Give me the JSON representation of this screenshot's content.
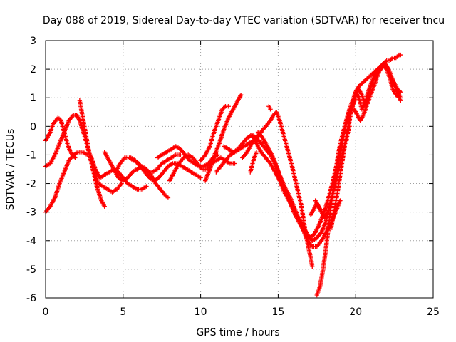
{
  "chart_data": {
    "type": "scatter",
    "title": "Day 088 of 2019, Sidereal Day-to-day VTEC variation (SDTVAR) for receiver tncu",
    "xlabel": "GPS time / hours",
    "ylabel": "SDTVAR / TECUs",
    "xlim": [
      0,
      25
    ],
    "ylim": [
      -6,
      3
    ],
    "xticks": [
      "0",
      "5",
      "10",
      "15",
      "20",
      "25"
    ],
    "yticks": [
      "-6",
      "-5",
      "-4",
      "-3",
      "-2",
      "-1",
      "0",
      "1",
      "2",
      "3"
    ],
    "grid": true,
    "marker": "plus",
    "color": "#ff0000",
    "tracks": [
      [
        [
          0.0,
          -3.0
        ],
        [
          0.3,
          -2.8
        ],
        [
          0.6,
          -2.5
        ],
        [
          0.9,
          -2.0
        ],
        [
          1.2,
          -1.6
        ],
        [
          1.5,
          -1.2
        ],
        [
          1.8,
          -1.0
        ],
        [
          2.1,
          -0.9
        ],
        [
          2.4,
          -0.9
        ],
        [
          2.7,
          -1.0
        ]
      ],
      [
        [
          0.0,
          -1.4
        ],
        [
          0.3,
          -1.3
        ],
        [
          0.6,
          -1.0
        ],
        [
          0.9,
          -0.6
        ],
        [
          1.2,
          -0.2
        ],
        [
          1.5,
          0.2
        ],
        [
          1.8,
          0.4
        ],
        [
          2.0,
          0.4
        ],
        [
          2.2,
          0.2
        ],
        [
          2.5,
          -0.3
        ],
        [
          2.8,
          -0.9
        ],
        [
          3.1,
          -1.6
        ],
        [
          3.3,
          -2.1
        ],
        [
          3.6,
          -2.6
        ],
        [
          3.8,
          -2.8
        ]
      ],
      [
        [
          0.0,
          -0.5
        ],
        [
          0.3,
          -0.2
        ],
        [
          0.5,
          0.1
        ],
        [
          0.8,
          0.3
        ],
        [
          1.0,
          0.2
        ],
        [
          1.2,
          -0.2
        ],
        [
          1.4,
          -0.6
        ],
        [
          1.6,
          -0.9
        ],
        [
          1.9,
          -1.1
        ]
      ],
      [
        [
          2.2,
          0.9
        ],
        [
          2.5,
          0.0
        ],
        [
          2.8,
          -0.9
        ],
        [
          3.1,
          -1.6
        ],
        [
          3.4,
          -2.0
        ],
        [
          3.7,
          -2.1
        ],
        [
          4.0,
          -2.2
        ],
        [
          4.3,
          -2.3
        ],
        [
          4.6,
          -2.2
        ],
        [
          4.9,
          -2.0
        ]
      ],
      [
        [
          2.9,
          -1.0
        ],
        [
          3.2,
          -1.5
        ],
        [
          3.5,
          -1.8
        ],
        [
          3.8,
          -1.7
        ],
        [
          4.1,
          -1.6
        ],
        [
          4.4,
          -1.5
        ],
        [
          4.7,
          -1.6
        ],
        [
          5.0,
          -1.8
        ],
        [
          5.3,
          -2.0
        ],
        [
          5.6,
          -2.1
        ],
        [
          5.9,
          -2.2
        ],
        [
          6.2,
          -2.2
        ],
        [
          6.5,
          -2.1
        ]
      ],
      [
        [
          3.8,
          -0.9
        ],
        [
          4.1,
          -1.2
        ],
        [
          4.4,
          -1.5
        ],
        [
          4.7,
          -1.8
        ],
        [
          5.0,
          -1.9
        ],
        [
          5.3,
          -1.8
        ],
        [
          5.6,
          -1.6
        ],
        [
          5.9,
          -1.5
        ],
        [
          6.2,
          -1.4
        ],
        [
          6.5,
          -1.5
        ],
        [
          6.8,
          -1.7
        ],
        [
          7.1,
          -2.0
        ],
        [
          7.4,
          -2.2
        ],
        [
          7.7,
          -2.4
        ],
        [
          7.9,
          -2.5
        ]
      ],
      [
        [
          4.5,
          -1.6
        ],
        [
          4.8,
          -1.3
        ],
        [
          5.1,
          -1.1
        ],
        [
          5.4,
          -1.1
        ],
        [
          5.7,
          -1.2
        ],
        [
          6.0,
          -1.3
        ],
        [
          6.3,
          -1.5
        ],
        [
          6.6,
          -1.6
        ],
        [
          6.9,
          -1.6
        ],
        [
          7.2,
          -1.5
        ],
        [
          7.5,
          -1.3
        ],
        [
          7.8,
          -1.2
        ],
        [
          8.1,
          -1.1
        ],
        [
          8.4,
          -1.0
        ],
        [
          8.7,
          -1.0
        ]
      ],
      [
        [
          5.5,
          -1.1
        ],
        [
          5.8,
          -1.2
        ],
        [
          6.1,
          -1.4
        ],
        [
          6.4,
          -1.6
        ],
        [
          6.7,
          -1.8
        ],
        [
          7.0,
          -1.9
        ],
        [
          7.3,
          -1.8
        ],
        [
          7.6,
          -1.6
        ],
        [
          7.9,
          -1.4
        ],
        [
          8.2,
          -1.3
        ],
        [
          8.5,
          -1.3
        ],
        [
          8.8,
          -1.4
        ],
        [
          9.1,
          -1.5
        ],
        [
          9.4,
          -1.6
        ],
        [
          9.7,
          -1.7
        ],
        [
          10.0,
          -1.8
        ]
      ],
      [
        [
          7.2,
          -1.1
        ],
        [
          7.5,
          -1.0
        ],
        [
          7.8,
          -0.9
        ],
        [
          8.1,
          -0.8
        ],
        [
          8.4,
          -0.7
        ],
        [
          8.7,
          -0.8
        ],
        [
          9.0,
          -1.0
        ],
        [
          9.3,
          -1.2
        ],
        [
          9.6,
          -1.3
        ],
        [
          9.9,
          -1.4
        ],
        [
          10.2,
          -1.4
        ],
        [
          10.5,
          -1.3
        ],
        [
          10.8,
          -1.1
        ],
        [
          11.1,
          -1.0
        ]
      ],
      [
        [
          8.0,
          -1.9
        ],
        [
          8.3,
          -1.6
        ],
        [
          8.6,
          -1.3
        ],
        [
          8.9,
          -1.1
        ],
        [
          9.2,
          -1.0
        ],
        [
          9.5,
          -1.1
        ],
        [
          9.8,
          -1.3
        ],
        [
          10.1,
          -1.5
        ],
        [
          10.4,
          -1.5
        ],
        [
          10.7,
          -1.3
        ],
        [
          11.0,
          -1.2
        ],
        [
          11.3,
          -1.1
        ],
        [
          11.6,
          -1.2
        ],
        [
          11.9,
          -1.3
        ],
        [
          12.2,
          -1.3
        ]
      ],
      [
        [
          10.0,
          -1.2
        ],
        [
          10.3,
          -1.0
        ],
        [
          10.6,
          -0.7
        ],
        [
          10.8,
          -0.3
        ],
        [
          11.0,
          0.0
        ],
        [
          11.2,
          0.3
        ],
        [
          11.4,
          0.6
        ],
        [
          11.6,
          0.7
        ],
        [
          11.8,
          0.7
        ]
      ],
      [
        [
          10.3,
          -1.9
        ],
        [
          10.6,
          -1.5
        ],
        [
          10.9,
          -1.0
        ],
        [
          11.2,
          -0.6
        ],
        [
          11.5,
          -0.1
        ],
        [
          11.8,
          0.3
        ],
        [
          12.1,
          0.6
        ],
        [
          12.4,
          0.9
        ],
        [
          12.6,
          1.1
        ]
      ],
      [
        [
          11.0,
          -1.6
        ],
        [
          11.3,
          -1.4
        ],
        [
          11.6,
          -1.2
        ],
        [
          11.9,
          -1.0
        ],
        [
          12.2,
          -0.9
        ],
        [
          12.5,
          -0.8
        ],
        [
          12.8,
          -0.7
        ],
        [
          13.1,
          -0.6
        ],
        [
          13.4,
          -0.5
        ],
        [
          13.7,
          -0.5
        ],
        [
          14.0,
          -0.6
        ]
      ],
      [
        [
          11.5,
          -0.7
        ],
        [
          11.8,
          -0.8
        ],
        [
          12.1,
          -0.9
        ],
        [
          12.4,
          -0.8
        ],
        [
          12.7,
          -0.6
        ],
        [
          13.0,
          -0.4
        ],
        [
          13.3,
          -0.3
        ],
        [
          13.6,
          -0.4
        ],
        [
          13.9,
          -0.6
        ],
        [
          14.2,
          -0.8
        ],
        [
          14.5,
          -1.0
        ],
        [
          14.8,
          -1.3
        ],
        [
          15.1,
          -1.7
        ],
        [
          15.4,
          -2.1
        ],
        [
          15.7,
          -2.4
        ],
        [
          16.0,
          -2.8
        ],
        [
          16.3,
          -3.2
        ],
        [
          16.6,
          -3.6
        ],
        [
          16.9,
          -4.0
        ],
        [
          17.2,
          -4.2
        ],
        [
          17.5,
          -4.2
        ],
        [
          17.8,
          -4.0
        ],
        [
          18.1,
          -3.7
        ],
        [
          18.4,
          -3.4
        ],
        [
          18.7,
          -3.0
        ],
        [
          19.0,
          -2.6
        ]
      ],
      [
        [
          12.7,
          -1.1
        ],
        [
          13.0,
          -0.9
        ],
        [
          13.3,
          -0.6
        ],
        [
          13.6,
          -0.4
        ],
        [
          13.9,
          -0.2
        ],
        [
          14.2,
          0.0
        ],
        [
          14.5,
          0.2
        ],
        [
          14.7,
          0.4
        ],
        [
          14.9,
          0.5
        ],
        [
          15.1,
          0.2
        ],
        [
          15.3,
          -0.2
        ],
        [
          15.6,
          -0.8
        ],
        [
          15.9,
          -1.4
        ],
        [
          16.2,
          -2.1
        ],
        [
          16.5,
          -2.8
        ],
        [
          16.7,
          -3.5
        ],
        [
          16.9,
          -4.1
        ],
        [
          17.1,
          -4.6
        ],
        [
          17.2,
          -4.9
        ]
      ],
      [
        [
          13.3,
          -0.3
        ],
        [
          13.6,
          -0.6
        ],
        [
          13.9,
          -0.9
        ],
        [
          14.2,
          -1.1
        ],
        [
          14.5,
          -1.3
        ],
        [
          14.8,
          -1.6
        ],
        [
          15.1,
          -1.9
        ],
        [
          15.4,
          -2.3
        ],
        [
          15.7,
          -2.6
        ],
        [
          16.0,
          -2.9
        ],
        [
          16.3,
          -3.2
        ],
        [
          16.6,
          -3.5
        ],
        [
          16.9,
          -3.8
        ],
        [
          17.2,
          -4.0
        ],
        [
          17.5,
          -3.9
        ],
        [
          17.8,
          -3.7
        ],
        [
          18.1,
          -3.3
        ],
        [
          18.4,
          -2.7
        ],
        [
          18.7,
          -2.0
        ],
        [
          19.0,
          -1.3
        ],
        [
          19.3,
          -0.6
        ],
        [
          19.6,
          0.0
        ]
      ],
      [
        [
          13.7,
          -0.2
        ],
        [
          14.0,
          -0.4
        ],
        [
          14.3,
          -0.7
        ],
        [
          14.6,
          -1.0
        ],
        [
          14.9,
          -1.4
        ],
        [
          15.2,
          -1.9
        ],
        [
          15.5,
          -2.3
        ],
        [
          15.8,
          -2.7
        ],
        [
          16.1,
          -3.1
        ],
        [
          16.4,
          -3.4
        ],
        [
          16.7,
          -3.7
        ],
        [
          17.0,
          -3.9
        ],
        [
          17.3,
          -3.8
        ],
        [
          17.6,
          -3.5
        ],
        [
          17.9,
          -3.1
        ],
        [
          18.2,
          -2.6
        ],
        [
          18.5,
          -2.0
        ],
        [
          18.8,
          -1.3
        ],
        [
          19.1,
          -0.6
        ],
        [
          19.4,
          0.1
        ],
        [
          19.7,
          0.6
        ],
        [
          20.0,
          1.0
        ]
      ],
      [
        [
          17.4,
          -2.6
        ],
        [
          17.6,
          -2.8
        ],
        [
          17.8,
          -3.0
        ],
        [
          18.0,
          -3.2
        ],
        [
          18.2,
          -3.0
        ],
        [
          18.4,
          -2.6
        ],
        [
          18.6,
          -2.2
        ],
        [
          18.8,
          -1.6
        ],
        [
          19.0,
          -1.0
        ],
        [
          19.2,
          -0.4
        ],
        [
          19.4,
          0.2
        ],
        [
          19.6,
          0.6
        ],
        [
          19.8,
          0.9
        ],
        [
          20.0,
          1.2
        ],
        [
          20.2,
          1.4
        ],
        [
          20.4,
          1.5
        ],
        [
          20.6,
          1.6
        ],
        [
          20.8,
          1.7
        ],
        [
          21.0,
          1.8
        ],
        [
          21.2,
          1.9
        ],
        [
          21.4,
          2.0
        ],
        [
          21.6,
          2.1
        ],
        [
          21.8,
          2.2
        ],
        [
          22.0,
          2.3
        ],
        [
          22.2,
          2.3
        ],
        [
          22.4,
          2.4
        ],
        [
          22.6,
          2.4
        ],
        [
          22.8,
          2.5
        ],
        [
          22.9,
          2.5
        ]
      ],
      [
        [
          17.5,
          -5.9
        ],
        [
          17.7,
          -5.6
        ],
        [
          17.9,
          -5.0
        ],
        [
          18.1,
          -4.2
        ],
        [
          18.3,
          -3.3
        ],
        [
          18.5,
          -2.4
        ],
        [
          18.7,
          -1.6
        ],
        [
          18.9,
          -0.9
        ],
        [
          19.1,
          -0.4
        ],
        [
          19.3,
          0.0
        ],
        [
          19.5,
          0.4
        ],
        [
          19.7,
          0.6
        ]
      ],
      [
        [
          18.4,
          -3.6
        ],
        [
          18.6,
          -3.0
        ],
        [
          18.8,
          -2.4
        ],
        [
          19.0,
          -1.7
        ],
        [
          19.2,
          -1.0
        ],
        [
          19.4,
          -0.3
        ],
        [
          19.6,
          0.3
        ],
        [
          19.8,
          0.7
        ],
        [
          20.0,
          1.1
        ],
        [
          20.2,
          1.3
        ],
        [
          20.4,
          1.1
        ],
        [
          20.6,
          0.8
        ],
        [
          20.8,
          1.0
        ],
        [
          21.0,
          1.4
        ],
        [
          21.2,
          1.7
        ],
        [
          21.4,
          1.9
        ],
        [
          21.6,
          2.0
        ],
        [
          21.8,
          2.1
        ],
        [
          22.0,
          2.0
        ],
        [
          22.2,
          1.7
        ],
        [
          22.4,
          1.3
        ],
        [
          22.6,
          1.1
        ],
        [
          22.8,
          1.0
        ],
        [
          22.9,
          0.9
        ]
      ],
      [
        [
          19.4,
          -0.5
        ],
        [
          19.6,
          0.2
        ],
        [
          19.8,
          0.8
        ],
        [
          20.0,
          1.2
        ],
        [
          20.2,
          1.0
        ],
        [
          20.4,
          0.6
        ],
        [
          20.6,
          0.8
        ],
        [
          20.8,
          1.2
        ],
        [
          21.0,
          1.5
        ],
        [
          21.2,
          1.8
        ],
        [
          21.4,
          2.0
        ],
        [
          21.6,
          2.1
        ],
        [
          21.8,
          2.2
        ],
        [
          22.0,
          2.1
        ],
        [
          22.2,
          1.9
        ],
        [
          22.4,
          1.6
        ],
        [
          22.6,
          1.3
        ],
        [
          22.8,
          1.1
        ],
        [
          22.9,
          1.0
        ]
      ],
      [
        [
          19.9,
          0.6
        ],
        [
          20.1,
          0.4
        ],
        [
          20.3,
          0.2
        ],
        [
          20.5,
          0.4
        ],
        [
          20.7,
          0.7
        ],
        [
          20.9,
          1.0
        ],
        [
          21.1,
          1.3
        ],
        [
          21.3,
          1.6
        ],
        [
          21.5,
          1.9
        ],
        [
          21.7,
          2.1
        ],
        [
          21.9,
          2.2
        ],
        [
          22.1,
          2.0
        ],
        [
          22.3,
          1.7
        ],
        [
          22.5,
          1.5
        ],
        [
          22.7,
          1.3
        ],
        [
          22.9,
          1.2
        ]
      ],
      [
        [
          13.2,
          -1.6
        ],
        [
          13.4,
          -1.2
        ],
        [
          13.6,
          -0.9
        ]
      ],
      [
        [
          14.4,
          0.7
        ],
        [
          14.5,
          0.6
        ]
      ],
      [
        [
          17.1,
          -3.1
        ],
        [
          17.3,
          -2.9
        ],
        [
          17.5,
          -2.7
        ],
        [
          17.7,
          -2.9
        ]
      ]
    ]
  }
}
